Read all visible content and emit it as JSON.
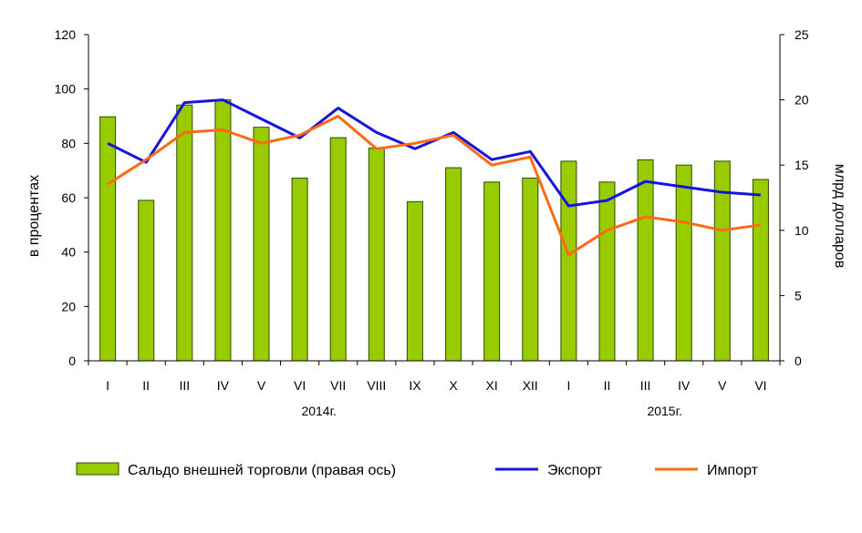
{
  "chart_data": {
    "type": "bar+line",
    "categories": [
      "I",
      "II",
      "III",
      "IV",
      "V",
      "VI",
      "VII",
      "VIII",
      "IX",
      "X",
      "XI",
      "XII",
      "I",
      "II",
      "III",
      "IV",
      "V",
      "VI"
    ],
    "year_labels": [
      {
        "label": "2014г.",
        "from": 0,
        "to": 11
      },
      {
        "label": "2015г.",
        "from": 12,
        "to": 17
      }
    ],
    "left_axis": {
      "label": "в процентах",
      "min": 0,
      "max": 120,
      "ticks": [
        "0",
        "20",
        "40",
        "60",
        "80",
        "100",
        "120"
      ]
    },
    "right_axis": {
      "label": "млрд долларов",
      "min": 0,
      "max": 25,
      "ticks": [
        "0",
        "5",
        "10",
        "15",
        "20",
        "25"
      ]
    },
    "series": [
      {
        "name": "Сальдо внешней торговли (правая ось)",
        "type": "bar",
        "axis": "right",
        "color": "#99cc00",
        "values": [
          18.7,
          12.3,
          19.6,
          20.0,
          17.9,
          14.0,
          17.1,
          16.3,
          12.2,
          14.8,
          13.7,
          14.0,
          15.3,
          13.7,
          15.4,
          15.0,
          15.3,
          13.9
        ]
      },
      {
        "name": "Экспорт",
        "type": "line",
        "axis": "left",
        "color": "#1414e0",
        "values": [
          80,
          73,
          95,
          96,
          89,
          82,
          93,
          84,
          78,
          84,
          74,
          77,
          57,
          59,
          66,
          64,
          62,
          61
        ]
      },
      {
        "name": "Импорт",
        "type": "line",
        "axis": "left",
        "color": "#ff6a13",
        "values": [
          65,
          74,
          84,
          85,
          80,
          83,
          90,
          78,
          80,
          83,
          72,
          75,
          39,
          48,
          53,
          51,
          48,
          50
        ]
      }
    ]
  }
}
